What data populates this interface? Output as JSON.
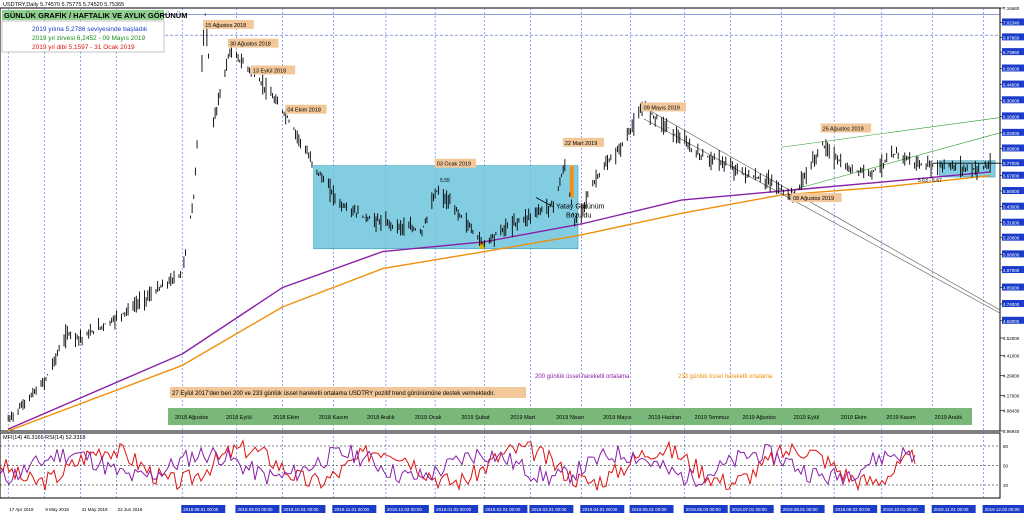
{
  "header": {
    "symbol_line": "USDTRY,Daily  5.74570 5.75775 5.74520 5.75365"
  },
  "title_box": {
    "text": "GÜNLÜK GRAFİK / HAFTALIK VE AYLIK GÖRÜNÜM"
  },
  "notes": [
    {
      "text": "2019 yılına 5,2786 seviyesinde başladık",
      "color": "#1a3cc8"
    },
    {
      "text": "2019 yıl zirvesi 6,2452 - 09 Mayıs 2019",
      "color": "#1a8a1a"
    },
    {
      "text": "2019 yıl dibi 5,1597 - 31 Ocak 2019",
      "color": "#e01010"
    }
  ],
  "event_labels": [
    {
      "text": "15 Ağustos 2018"
    },
    {
      "text": "30 Ağustos 2018"
    },
    {
      "text": "13 Eylül 2018"
    },
    {
      "text": "04 Ekim 2018"
    },
    {
      "text": "03 Ocak 2019"
    },
    {
      "text": "22 Mart 2019"
    },
    {
      "text": "09 Mayıs 2019"
    },
    {
      "text": "26 Ağustos 2019"
    },
    {
      "text": "08 Ağustos 2019"
    }
  ],
  "misc_labels": {
    "level_555": "5.55",
    "range_563": "5.63 - 5.67",
    "yatay": "Yatay Görünüm",
    "bozuldu": "Bozuldu",
    "ema200": "200 günlük üssel hareketli ortalama",
    "ema233": "233 günlük üssel hareketli ortalama",
    "note": "27 Eylül 2017'den beri 200 ve 233 günlük üssel hareketli ortalama USDTRY pozitif trend görünümüne destek vermektedir."
  },
  "month_bar": [
    "2018 Ağustos",
    "2018 Eylül",
    "2018 Ekim",
    "2018 Kasım",
    "2018 Aralık",
    "2019 Ocak",
    "2019 Şubat",
    "2019 Mart",
    "2019 Nisan",
    "2019 Mayıs",
    "2019 Haziran",
    "2019 Temmuz",
    "2019 Ağustos",
    "2019 Eylül",
    "2019 Ekim",
    "2019 Kasım",
    "2019 Aralık"
  ],
  "colors": {
    "ema200": "#8a1fa8",
    "ema233": "#f0900a",
    "mfi": "#e01010",
    "rsi": "#8a1fa8",
    "box": "#6cc4dc",
    "month_bar": "#7ab87a",
    "price": "#000000",
    "grid": "#4a6ae0"
  },
  "indicator": {
    "label": "MFI(14) 46.3166  RSI(14) 52.3318"
  },
  "chart_data": {
    "type": "line",
    "title": "GÜNLÜK GRAFİK / HAFTALIK VE AYLIK GÖRÜNÜM",
    "xlabel": "",
    "ylabel": "",
    "y_scale": "log",
    "ylim": [
      3.9694,
      7.1668
    ],
    "y_ticks": [
      "7.16680",
      "7.02340",
      "6.87860",
      "6.73860",
      "6.58600",
      "6.44000",
      "6.30000",
      "6.16000",
      "6.02000",
      "5.89000",
      "5.77000",
      "5.67000",
      "5.55000",
      "5.43000",
      "5.31000",
      "5.20000",
      "5.08000",
      "4.97000",
      "4.85000",
      "4.74000",
      "4.63000",
      "4.52000",
      "4.41000",
      "4.29000",
      "4.17000",
      "4.08430",
      "3.96940"
    ],
    "x_ticks_bottom": [
      "17 Apr 2018",
      "9 May 2018",
      "31 May 2018",
      "22 Jun 2018",
      "2018.08.01 00:00",
      "2018.09.03 00:00",
      "2018.10.01 00:00",
      "2018.11.01 00:00",
      "2018.12.03 00:00",
      "2019.01.02 00:00",
      "2019.02.01 00:00",
      "2019.03.01 00:00",
      "2019.04.01 00:00",
      "2019.05.01 00:00",
      "2019.06.03 00:00",
      "2019.07.01 00:00",
      "2019.08.01 00:00",
      "2019.09.02 00:00",
      "2019.10.01 00:00",
      "2019.11.01 00:00",
      "2019.12.02 00:00"
    ],
    "price_path": [
      [
        "2018-04-17",
        4.03
      ],
      [
        "2018-05-09",
        4.25
      ],
      [
        "2018-05-23",
        4.55
      ],
      [
        "2018-06-01",
        4.52
      ],
      [
        "2018-06-22",
        4.65
      ],
      [
        "2018-07-10",
        4.78
      ],
      [
        "2018-08-01",
        4.95
      ],
      [
        "2018-08-08",
        5.5
      ],
      [
        "2018-08-13",
        6.6
      ],
      [
        "2018-08-15",
        7.1
      ],
      [
        "2018-08-20",
        6.1
      ],
      [
        "2018-08-30",
        6.75
      ],
      [
        "2018-09-13",
        6.55
      ],
      [
        "2018-10-04",
        6.15
      ],
      [
        "2018-10-20",
        5.75
      ],
      [
        "2018-11-05",
        5.45
      ],
      [
        "2018-11-20",
        5.35
      ],
      [
        "2018-12-05",
        5.3
      ],
      [
        "2018-12-25",
        5.25
      ],
      [
        "2019-01-03",
        5.55
      ],
      [
        "2019-01-15",
        5.4
      ],
      [
        "2019-01-31",
        5.16
      ],
      [
        "2019-02-15",
        5.28
      ],
      [
        "2019-03-15",
        5.45
      ],
      [
        "2019-03-22",
        5.75
      ],
      [
        "2019-03-28",
        5.3
      ],
      [
        "2019-04-10",
        5.65
      ],
      [
        "2019-04-25",
        5.9
      ],
      [
        "2019-05-09",
        6.24
      ],
      [
        "2019-05-25",
        6.05
      ],
      [
        "2019-06-10",
        5.85
      ],
      [
        "2019-06-25",
        5.78
      ],
      [
        "2019-07-10",
        5.68
      ],
      [
        "2019-07-25",
        5.62
      ],
      [
        "2019-08-08",
        5.5
      ],
      [
        "2019-08-26",
        5.92
      ],
      [
        "2019-09-10",
        5.72
      ],
      [
        "2019-09-25",
        5.7
      ],
      [
        "2019-10-10",
        5.85
      ],
      [
        "2019-10-25",
        5.75
      ],
      [
        "2019-11-10",
        5.75
      ],
      [
        "2019-11-25",
        5.72
      ],
      [
        "2019-12-06",
        5.75
      ]
    ],
    "series": [
      {
        "name": "200 günlük üssel hareketli ortalama",
        "values": [
          [
            "2018-08-01",
            4.42
          ],
          [
            "2018-10-01",
            4.85
          ],
          [
            "2018-12-01",
            5.1
          ],
          [
            "2019-02-01",
            5.17
          ],
          [
            "2019-04-01",
            5.3
          ],
          [
            "2019-06-01",
            5.48
          ],
          [
            "2019-08-01",
            5.55
          ],
          [
            "2019-10-01",
            5.62
          ],
          [
            "2019-12-06",
            5.7
          ]
        ]
      },
      {
        "name": "233 günlük üssel hareketli ortalama",
        "values": [
          [
            "2018-08-01",
            4.35
          ],
          [
            "2018-10-01",
            4.72
          ],
          [
            "2018-12-01",
            4.98
          ],
          [
            "2019-02-01",
            5.1
          ],
          [
            "2019-04-01",
            5.22
          ],
          [
            "2019-06-01",
            5.38
          ],
          [
            "2019-08-01",
            5.52
          ],
          [
            "2019-10-01",
            5.58
          ],
          [
            "2019-12-06",
            5.67
          ]
        ]
      }
    ],
    "indicator_chart": {
      "label": "MFI(14) 46.3166  RSI(14) 52.3318",
      "ylim": [
        0,
        100
      ],
      "levels": [
        20,
        50,
        80
      ]
    }
  }
}
